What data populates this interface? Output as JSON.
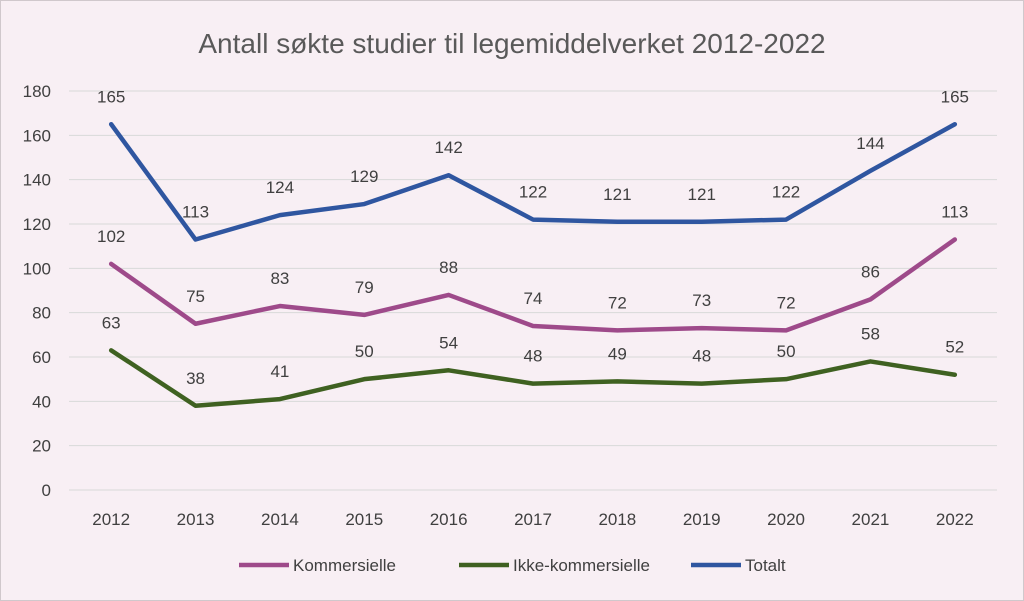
{
  "chart_data": {
    "type": "line",
    "title": "Antall søkte studier til legemiddelverket 2012-2022",
    "xlabel": "",
    "ylabel": "",
    "categories": [
      "2012",
      "2013",
      "2014",
      "2015",
      "2016",
      "2017",
      "2018",
      "2019",
      "2020",
      "2021",
      "2022"
    ],
    "ylim": [
      0,
      180
    ],
    "yticks": [
      0,
      20,
      40,
      60,
      80,
      100,
      120,
      140,
      160,
      180
    ],
    "grid": true,
    "legend_position": "bottom",
    "series": [
      {
        "name": "Kommersielle",
        "color": "#9e4a8a",
        "values": [
          102,
          75,
          83,
          79,
          88,
          74,
          72,
          73,
          72,
          86,
          113
        ]
      },
      {
        "name": "Ikke-kommersielle",
        "color": "#3f6121",
        "values": [
          63,
          38,
          41,
          50,
          54,
          48,
          49,
          48,
          50,
          58,
          52
        ]
      },
      {
        "name": "Totalt",
        "color": "#2f56a0",
        "values": [
          165,
          113,
          124,
          129,
          142,
          122,
          121,
          121,
          122,
          144,
          165
        ]
      }
    ]
  }
}
